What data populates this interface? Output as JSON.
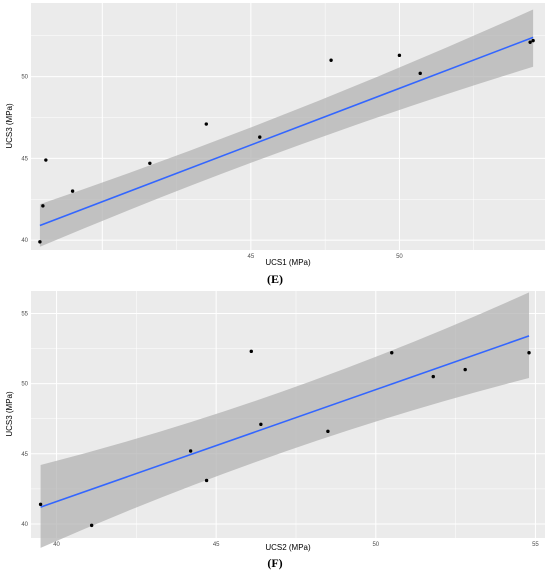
{
  "panels": [
    {
      "caption": "(E)",
      "chart_data": {
        "type": "scatter",
        "xlabel": "UCS1 (MPa)",
        "ylabel": "UCS3 (MPa)",
        "xlim": [
          37.6,
          54.9
        ],
        "ylim": [
          39.4,
          54.5
        ],
        "xticks": [
          45,
          50
        ],
        "yticks": [
          40,
          45,
          50
        ],
        "x": [
          37.9,
          38.0,
          38.1,
          39.0,
          41.6,
          43.5,
          45.3,
          47.7,
          50.0,
          50.7,
          54.4,
          54.5
        ],
        "y": [
          39.9,
          42.1,
          44.9,
          43.0,
          44.7,
          47.1,
          46.3,
          51.0,
          51.3,
          50.2,
          52.1,
          52.2
        ],
        "fit": {
          "x": [
            37.9,
            54.5
          ],
          "y": [
            40.9,
            52.4
          ]
        },
        "band": {
          "x": [
            37.9,
            54.5
          ],
          "upper": [
            42.2,
            54.1
          ],
          "lower": [
            39.6,
            50.6
          ]
        },
        "grid": true,
        "colors": {
          "panel": "#ebebeb",
          "grid": "#ffffff",
          "fit": "#3366ff",
          "band": "#b3b3b3",
          "point": "#000000"
        }
      }
    },
    {
      "caption": "(F)",
      "chart_data": {
        "type": "scatter",
        "xlabel": "UCS2 (MPa)",
        "ylabel": "UCS3 (MPa)",
        "xlim": [
          39.2,
          55.3
        ],
        "ylim": [
          39.0,
          56.6
        ],
        "xticks": [
          40,
          45,
          50,
          55
        ],
        "yticks": [
          40,
          45,
          50,
          55
        ],
        "x": [
          39.5,
          41.1,
          44.2,
          44.7,
          46.1,
          46.4,
          48.5,
          50.5,
          51.8,
          52.8,
          54.8
        ],
        "y": [
          41.4,
          39.9,
          45.2,
          43.1,
          52.3,
          47.1,
          46.6,
          52.2,
          50.5,
          51.0,
          52.2
        ],
        "fit": {
          "x": [
            39.5,
            54.8
          ],
          "y": [
            41.2,
            53.4
          ]
        },
        "band": {
          "x": [
            39.5,
            54.8
          ],
          "upper": [
            44.2,
            56.5
          ],
          "lower": [
            38.3,
            50.4
          ]
        },
        "grid": true,
        "colors": {
          "panel": "#ebebeb",
          "grid": "#ffffff",
          "fit": "#3366ff",
          "band": "#b3b3b3",
          "point": "#000000"
        }
      }
    }
  ]
}
